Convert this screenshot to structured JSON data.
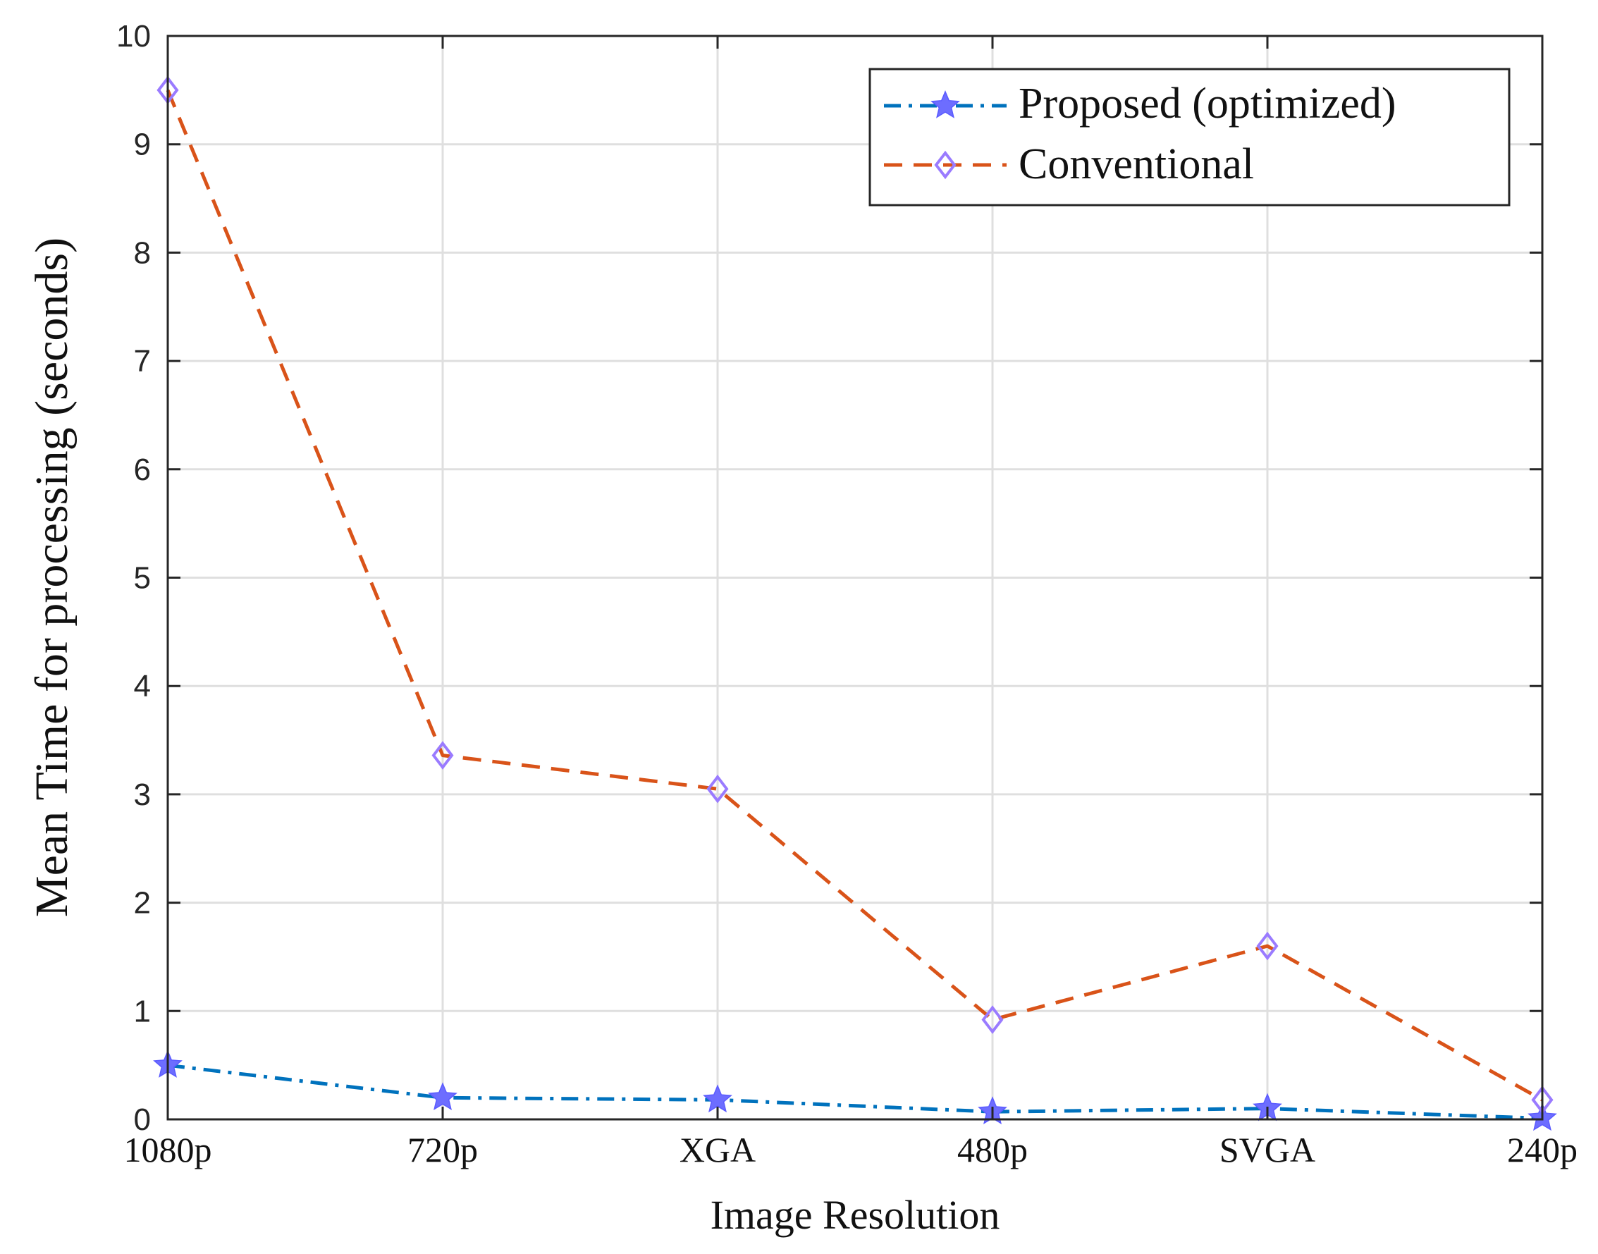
{
  "chart_data": {
    "type": "line",
    "title": "",
    "xlabel": "Image Resolution",
    "ylabel": "Mean Time for processing (seconds)",
    "categories": [
      "1080p",
      "720p",
      "XGA",
      "480p",
      "SVGA",
      "240p"
    ],
    "ylim": [
      0,
      10
    ],
    "yticks": [
      "0",
      "1",
      "2",
      "3",
      "4",
      "5",
      "6",
      "7",
      "8",
      "9",
      "10"
    ],
    "grid": true,
    "legend_position": "top-right",
    "series": [
      {
        "name": "Proposed (optimized)",
        "values": [
          0.5,
          0.2,
          0.18,
          0.07,
          0.1,
          0.01
        ],
        "color": "#0072BD",
        "marker_color": "#6D6DFF",
        "line_style": "dash-dot",
        "marker": "star"
      },
      {
        "name": "Conventional",
        "values": [
          9.5,
          3.36,
          3.05,
          0.92,
          1.6,
          0.18
        ],
        "color": "#D95319",
        "marker_color": "#9A7BFF",
        "line_style": "dashed",
        "marker": "diamond"
      }
    ]
  }
}
